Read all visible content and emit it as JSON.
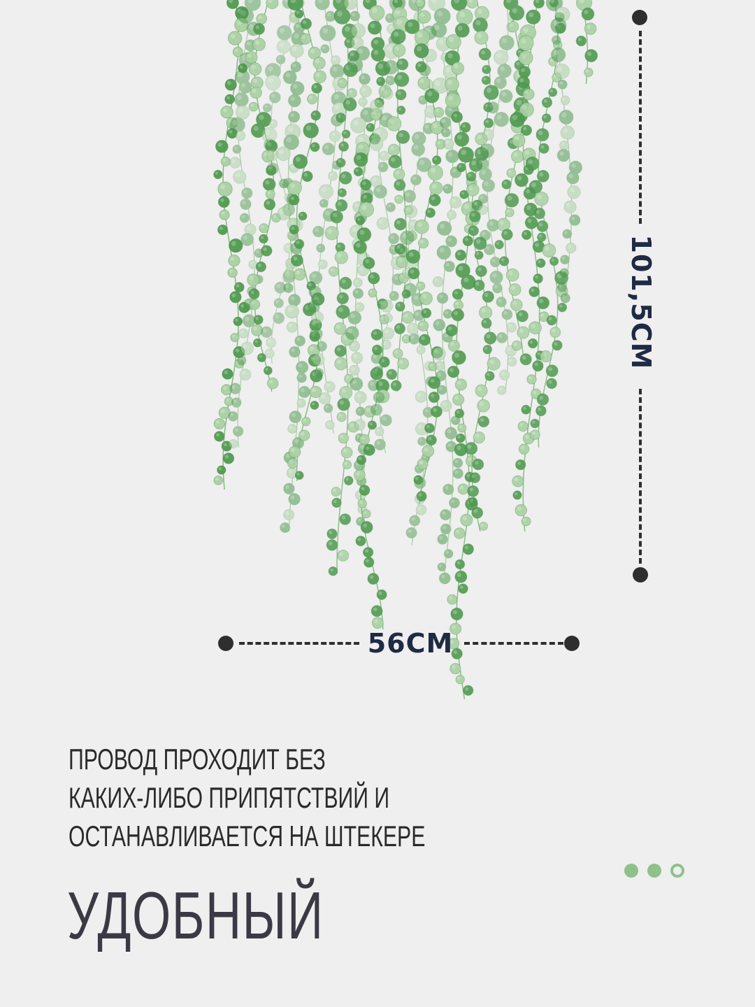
{
  "dimensions": {
    "height_label": "101,5CM",
    "width_label": "56CM"
  },
  "caption": {
    "lines": [
      "ПРОВОД ПРОХОДИТ БЕЗ",
      "КАКИХ-ЛИБО ПРИПЯТСТВИЙ И",
      "ОСТАНАВЛИВАЕТСЯ НА ШТЕКЕРЕ"
    ]
  },
  "headline": "УДОБНЫЙ",
  "pagination": {
    "total": 3,
    "current": 3
  },
  "colors": {
    "background": "#efefef",
    "leaf_dark": "#4f9a4f",
    "leaf_light": "#a9d1a2",
    "accent": "#8fc18b",
    "label": "#1f2a44",
    "headline": "#3b3944"
  },
  "illustration": "hanging-string-of-pearls-vines"
}
